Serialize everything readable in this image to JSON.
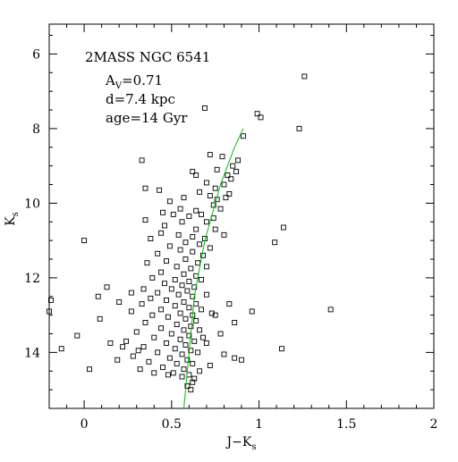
{
  "chart_data": {
    "type": "scatter",
    "title": "",
    "xlabel": "J−K",
    "xlabel_sub": "s",
    "ylabel": "K",
    "ylabel_sub": "s",
    "xlim": [
      -0.2,
      2.0
    ],
    "ylim": [
      15.5,
      5.2
    ],
    "y_inverted": true,
    "grid": false,
    "x_ticks": [
      {
        "value": 0,
        "label": "0"
      },
      {
        "value": 0.5,
        "label": "0.5"
      },
      {
        "value": 1,
        "label": "1"
      },
      {
        "value": 1.5,
        "label": "1.5"
      },
      {
        "value": 2,
        "label": "2"
      }
    ],
    "y_ticks": [
      {
        "value": 6,
        "label": "6"
      },
      {
        "value": 8,
        "label": "8"
      },
      {
        "value": 10,
        "label": "10"
      },
      {
        "value": 12,
        "label": "12"
      },
      {
        "value": 14,
        "label": "14"
      }
    ],
    "annotations": {
      "cluster": "2MASS NGC 6541",
      "extinction_main": "A",
      "extinction_sub": "V",
      "extinction_value": "=0.71",
      "distance": "d=7.4 kpc",
      "age": "age=14 Gyr"
    },
    "isochrone_color": "#00c000",
    "isochrone": [
      [
        0.57,
        15.5
      ],
      [
        0.58,
        15.0
      ],
      [
        0.59,
        14.5
      ],
      [
        0.6,
        14.0
      ],
      [
        0.61,
        13.5
      ],
      [
        0.62,
        13.0
      ],
      [
        0.63,
        12.5
      ],
      [
        0.65,
        12.0
      ],
      [
        0.67,
        11.5
      ],
      [
        0.69,
        11.0
      ],
      [
        0.72,
        10.5
      ],
      [
        0.75,
        10.0
      ],
      [
        0.78,
        9.5
      ],
      [
        0.82,
        9.0
      ],
      [
        0.86,
        8.5
      ],
      [
        0.91,
        8.0
      ]
    ],
    "points": [
      [
        1.26,
        6.6
      ],
      [
        0.69,
        7.45
      ],
      [
        0.99,
        7.6
      ],
      [
        1.01,
        7.7
      ],
      [
        1.23,
        8.0
      ],
      [
        0.91,
        8.2
      ],
      [
        0.72,
        8.7
      ],
      [
        0.79,
        8.75
      ],
      [
        0.33,
        8.85
      ],
      [
        0.88,
        8.85
      ],
      [
        0.85,
        9.0
      ],
      [
        0.76,
        9.1
      ],
      [
        0.62,
        9.15
      ],
      [
        0.87,
        9.15
      ],
      [
        0.64,
        9.25
      ],
      [
        0.82,
        9.25
      ],
      [
        0.84,
        9.35
      ],
      [
        0.7,
        9.45
      ],
      [
        0.8,
        9.5
      ],
      [
        0.35,
        9.6
      ],
      [
        0.75,
        9.6
      ],
      [
        0.43,
        9.65
      ],
      [
        0.66,
        9.7
      ],
      [
        0.83,
        9.75
      ],
      [
        0.72,
        9.8
      ],
      [
        0.57,
        9.85
      ],
      [
        0.81,
        9.85
      ],
      [
        0.76,
        9.9
      ],
      [
        0.49,
        9.95
      ],
      [
        0.74,
        10.05
      ],
      [
        0.55,
        10.15
      ],
      [
        0.64,
        10.2
      ],
      [
        0.78,
        10.15
      ],
      [
        0.45,
        10.25
      ],
      [
        0.51,
        10.3
      ],
      [
        0.67,
        10.3
      ],
      [
        0.6,
        10.35
      ],
      [
        0.74,
        10.4
      ],
      [
        0.35,
        10.45
      ],
      [
        0.56,
        10.5
      ],
      [
        0.7,
        10.5
      ],
      [
        0.46,
        10.6
      ],
      [
        0.64,
        10.7
      ],
      [
        0.75,
        10.7
      ],
      [
        1.14,
        10.65
      ],
      [
        0.44,
        10.8
      ],
      [
        0.54,
        10.85
      ],
      [
        0.62,
        10.9
      ],
      [
        0.38,
        10.95
      ],
      [
        0.69,
        10.95
      ],
      [
        0.8,
        10.85
      ],
      [
        0.0,
        11.0
      ],
      [
        0.58,
        11.05
      ],
      [
        0.66,
        11.1
      ],
      [
        0.49,
        11.15
      ],
      [
        1.09,
        11.05
      ],
      [
        0.72,
        11.2
      ],
      [
        0.55,
        11.25
      ],
      [
        0.62,
        11.3
      ],
      [
        0.42,
        11.35
      ],
      [
        0.68,
        11.4
      ],
      [
        0.58,
        11.5
      ],
      [
        0.47,
        11.55
      ],
      [
        0.65,
        11.6
      ],
      [
        0.36,
        11.6
      ],
      [
        0.53,
        11.7
      ],
      [
        0.61,
        11.75
      ],
      [
        0.7,
        11.7
      ],
      [
        0.44,
        11.85
      ],
      [
        0.57,
        11.9
      ],
      [
        0.64,
        11.95
      ],
      [
        0.39,
        12.0
      ],
      [
        0.52,
        12.05
      ],
      [
        0.6,
        12.1
      ],
      [
        0.67,
        12.05
      ],
      [
        0.46,
        12.15
      ],
      [
        0.56,
        12.2
      ],
      [
        0.63,
        12.25
      ],
      [
        0.13,
        12.25
      ],
      [
        0.34,
        12.3
      ],
      [
        0.5,
        12.3
      ],
      [
        0.59,
        12.35
      ],
      [
        0.42,
        12.4
      ],
      [
        0.54,
        12.45
      ],
      [
        0.62,
        12.5
      ],
      [
        0.7,
        12.45
      ],
      [
        -0.19,
        12.6
      ],
      [
        0.08,
        12.5
      ],
      [
        0.38,
        12.55
      ],
      [
        0.47,
        12.6
      ],
      [
        0.57,
        12.65
      ],
      [
        0.64,
        12.7
      ],
      [
        0.33,
        12.7
      ],
      [
        0.52,
        12.75
      ],
      [
        0.6,
        12.8
      ],
      [
        0.44,
        12.85
      ],
      [
        0.67,
        12.85
      ],
      [
        1.41,
        12.85
      ],
      [
        -0.2,
        12.9
      ],
      [
        0.27,
        12.9
      ],
      [
        0.55,
        12.95
      ],
      [
        0.62,
        13.0
      ],
      [
        0.39,
        13.0
      ],
      [
        0.75,
        13.0
      ],
      [
        0.48,
        13.05
      ],
      [
        0.58,
        13.1
      ],
      [
        0.64,
        13.15
      ],
      [
        0.09,
        13.1
      ],
      [
        0.35,
        13.2
      ],
      [
        0.53,
        13.25
      ],
      [
        0.61,
        13.3
      ],
      [
        0.86,
        13.2
      ],
      [
        0.44,
        13.35
      ],
      [
        0.57,
        13.4
      ],
      [
        0.66,
        13.4
      ],
      [
        0.3,
        13.45
      ],
      [
        0.5,
        13.5
      ],
      [
        0.6,
        13.55
      ],
      [
        0.78,
        13.5
      ],
      [
        -0.04,
        13.55
      ],
      [
        0.4,
        13.6
      ],
      [
        0.55,
        13.65
      ],
      [
        0.63,
        13.7
      ],
      [
        0.24,
        13.7
      ],
      [
        0.47,
        13.75
      ],
      [
        0.58,
        13.8
      ],
      [
        0.7,
        13.75
      ],
      [
        0.34,
        13.85
      ],
      [
        0.52,
        13.9
      ],
      [
        0.61,
        13.95
      ],
      [
        1.13,
        13.9
      ],
      [
        -0.13,
        13.9
      ],
      [
        0.42,
        14.0
      ],
      [
        0.56,
        14.05
      ],
      [
        0.65,
        14.0
      ],
      [
        0.28,
        14.1
      ],
      [
        0.49,
        14.15
      ],
      [
        0.59,
        14.2
      ],
      [
        0.86,
        14.15
      ],
      [
        0.19,
        14.2
      ],
      [
        0.37,
        14.25
      ],
      [
        0.53,
        14.3
      ],
      [
        0.62,
        14.3
      ],
      [
        0.9,
        14.2
      ],
      [
        0.45,
        14.4
      ],
      [
        0.57,
        14.45
      ],
      [
        0.03,
        14.45
      ],
      [
        0.32,
        14.45
      ],
      [
        0.66,
        14.5
      ],
      [
        0.51,
        14.55
      ],
      [
        0.6,
        14.6
      ],
      [
        0.4,
        14.55
      ],
      [
        0.56,
        14.65
      ],
      [
        0.63,
        14.7
      ],
      [
        0.48,
        14.6
      ],
      [
        0.72,
        14.35
      ],
      [
        0.8,
        14.05
      ],
      [
        0.31,
        13.95
      ],
      [
        0.22,
        13.85
      ],
      [
        0.15,
        13.75
      ],
      [
        0.68,
        13.6
      ],
      [
        0.73,
        12.95
      ],
      [
        0.96,
        12.9
      ],
      [
        0.83,
        12.7
      ],
      [
        0.27,
        12.4
      ],
      [
        0.2,
        12.65
      ],
      [
        0.62,
        14.8
      ],
      [
        0.59,
        14.9
      ],
      [
        0.61,
        15.0
      ]
    ]
  }
}
